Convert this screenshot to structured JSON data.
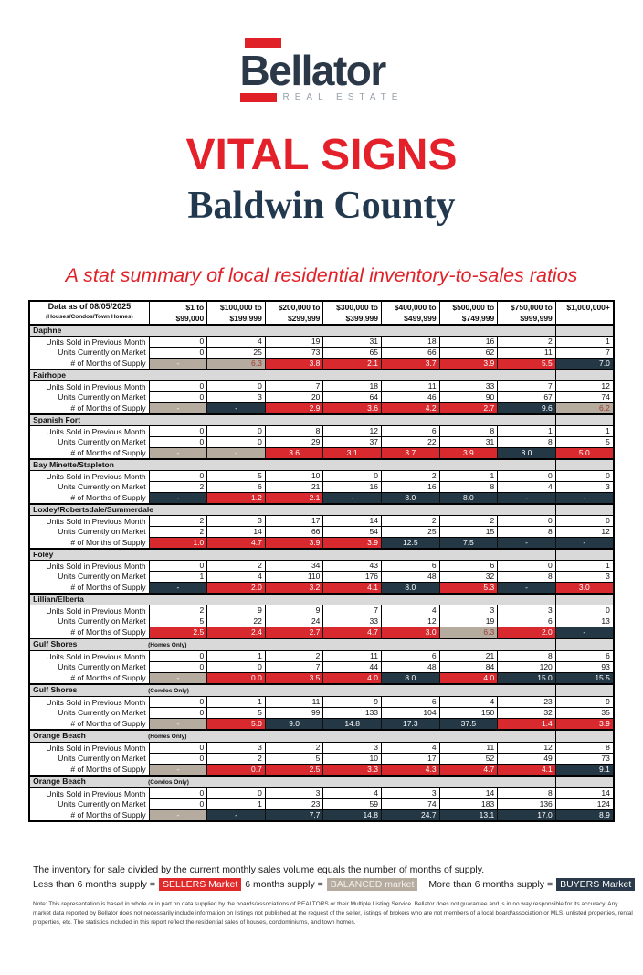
{
  "logo": {
    "brand": "Bellator",
    "tagline": "REAL ESTATE"
  },
  "title": "VITAL SIGNS",
  "county": "Baldwin County",
  "stat_summary": "A stat summary of local residential inventory-to-sales ratios",
  "colors": {
    "sellers_red": "#D8292E",
    "buyers_navy": "#243745",
    "balanced_tan": "#B5AB9E",
    "section_gray": "#D9D9D9",
    "brand_navy": "#2B3848",
    "title_red": "#E4212B"
  },
  "table": {
    "header": {
      "title": "Data as of 08/05/2025",
      "subtitle": "(Houses/Condos/Town Homes)",
      "columns": [
        [
          "$1 to",
          "$99,000"
        ],
        [
          "$100,000 to",
          "$199,999"
        ],
        [
          "$200,000 to",
          "$299,999"
        ],
        [
          "$300,000 to",
          "$399,999"
        ],
        [
          "$400,000 to",
          "$499,999"
        ],
        [
          "$500,000 to",
          "$749,999"
        ],
        [
          "$750,000 to",
          "$999,999"
        ],
        [
          "$1,000,000+",
          ""
        ]
      ]
    },
    "row_labels": [
      "Units Sold in Previous Month",
      "Units Currently on Market",
      "# of Months of Supply"
    ],
    "sections": [
      {
        "name": "Daphne",
        "subtitle": "",
        "sold": [
          0,
          4,
          19,
          31,
          18,
          16,
          2,
          1
        ],
        "market": [
          0,
          25,
          73,
          65,
          66,
          62,
          11,
          7
        ],
        "supply": [
          {
            "v": "-",
            "c": "t"
          },
          {
            "v": "6.3",
            "c": "t"
          },
          {
            "v": "3.8",
            "c": "s"
          },
          {
            "v": "2.1",
            "c": "s"
          },
          {
            "v": "3.7",
            "c": "s"
          },
          {
            "v": "3.9",
            "c": "s"
          },
          {
            "v": "5.5",
            "c": "s"
          },
          {
            "v": "7.0",
            "c": "b"
          }
        ]
      },
      {
        "name": "Fairhope",
        "subtitle": "",
        "sold": [
          0,
          0,
          7,
          18,
          11,
          33,
          7,
          12
        ],
        "market": [
          0,
          3,
          20,
          64,
          46,
          90,
          67,
          74
        ],
        "supply": [
          {
            "v": "-",
            "c": "t"
          },
          {
            "v": "-",
            "c": "b"
          },
          {
            "v": "2.9",
            "c": "s"
          },
          {
            "v": "3.6",
            "c": "s"
          },
          {
            "v": "4.2",
            "c": "s"
          },
          {
            "v": "2.7",
            "c": "s"
          },
          {
            "v": "9.6",
            "c": "b"
          },
          {
            "v": "6.2",
            "c": "t"
          }
        ]
      },
      {
        "name": "Spanish Fort",
        "subtitle": "",
        "sold": [
          0,
          0,
          8,
          12,
          6,
          8,
          1,
          1
        ],
        "market": [
          0,
          0,
          29,
          37,
          22,
          31,
          8,
          5
        ],
        "supply": [
          {
            "v": "-",
            "c": "t"
          },
          {
            "v": "-",
            "c": "t"
          },
          {
            "v": "3.6",
            "c": "s",
            "a": "c"
          },
          {
            "v": "3.1",
            "c": "s",
            "a": "c"
          },
          {
            "v": "3.7",
            "c": "s",
            "a": "c"
          },
          {
            "v": "3.9",
            "c": "s",
            "a": "c"
          },
          {
            "v": "8.0",
            "c": "b",
            "a": "c"
          },
          {
            "v": "5.0",
            "c": "s",
            "a": "c"
          }
        ]
      },
      {
        "name": "Bay Minette/Stapleton",
        "subtitle": "",
        "sold": [
          0,
          5,
          10,
          0,
          2,
          1,
          0,
          0
        ],
        "market": [
          2,
          6,
          21,
          16,
          16,
          8,
          4,
          3
        ],
        "supply": [
          {
            "v": "-",
            "c": "b"
          },
          {
            "v": "1.2",
            "c": "s"
          },
          {
            "v": "2.1",
            "c": "s"
          },
          {
            "v": "-",
            "c": "b"
          },
          {
            "v": "8.0",
            "c": "b",
            "a": "c"
          },
          {
            "v": "8.0",
            "c": "b",
            "a": "c"
          },
          {
            "v": "-",
            "c": "b"
          },
          {
            "v": "-",
            "c": "b"
          }
        ]
      },
      {
        "name": "Loxley/Robertsdale/Summerdale",
        "subtitle": "",
        "sold": [
          2,
          3,
          17,
          14,
          2,
          2,
          0,
          0
        ],
        "market": [
          2,
          14,
          66,
          54,
          25,
          15,
          8,
          12
        ],
        "supply": [
          {
            "v": "1.0",
            "c": "s"
          },
          {
            "v": "4.7",
            "c": "s"
          },
          {
            "v": "3.9",
            "c": "s"
          },
          {
            "v": "3.9",
            "c": "s"
          },
          {
            "v": "12.5",
            "c": "b",
            "a": "c"
          },
          {
            "v": "7.5",
            "c": "b",
            "a": "c"
          },
          {
            "v": "-",
            "c": "b"
          },
          {
            "v": "-",
            "c": "b"
          }
        ]
      },
      {
        "name": "Foley",
        "subtitle": "",
        "sold": [
          0,
          2,
          34,
          43,
          6,
          6,
          0,
          1
        ],
        "market": [
          1,
          4,
          110,
          176,
          48,
          32,
          8,
          3
        ],
        "supply": [
          {
            "v": "-",
            "c": "b"
          },
          {
            "v": "2.0",
            "c": "s"
          },
          {
            "v": "3.2",
            "c": "s"
          },
          {
            "v": "4.1",
            "c": "s"
          },
          {
            "v": "8.0",
            "c": "b",
            "a": "c"
          },
          {
            "v": "5.3",
            "c": "s"
          },
          {
            "v": "-",
            "c": "b"
          },
          {
            "v": "3.0",
            "c": "s",
            "a": "c"
          }
        ]
      },
      {
        "name": "Lillian/Elberta",
        "subtitle": "",
        "sold": [
          2,
          9,
          9,
          7,
          4,
          3,
          3,
          0
        ],
        "market": [
          5,
          22,
          24,
          33,
          12,
          19,
          6,
          13
        ],
        "supply": [
          {
            "v": "2.5",
            "c": "s"
          },
          {
            "v": "2.4",
            "c": "s"
          },
          {
            "v": "2.7",
            "c": "s"
          },
          {
            "v": "4.7",
            "c": "s"
          },
          {
            "v": "3.0",
            "c": "s"
          },
          {
            "v": "6.3",
            "c": "t"
          },
          {
            "v": "2.0",
            "c": "s"
          },
          {
            "v": "-",
            "c": "b"
          }
        ]
      },
      {
        "name": "Gulf Shores",
        "subtitle": "(Homes Only)",
        "sold": [
          0,
          1,
          2,
          11,
          6,
          21,
          8,
          6
        ],
        "market": [
          0,
          0,
          7,
          44,
          48,
          84,
          120,
          93
        ],
        "supply": [
          {
            "v": "-",
            "c": "t"
          },
          {
            "v": "0.0",
            "c": "s"
          },
          {
            "v": "3.5",
            "c": "s"
          },
          {
            "v": "4.0",
            "c": "s"
          },
          {
            "v": "8.0",
            "c": "b",
            "a": "c"
          },
          {
            "v": "4.0",
            "c": "s"
          },
          {
            "v": "15.0",
            "c": "b"
          },
          {
            "v": "15.5",
            "c": "b"
          }
        ]
      },
      {
        "name": "Gulf Shores",
        "subtitle": "(Condos Only)",
        "sold": [
          0,
          1,
          11,
          9,
          6,
          4,
          23,
          9
        ],
        "market": [
          0,
          5,
          99,
          133,
          104,
          150,
          32,
          35
        ],
        "supply": [
          {
            "v": "-",
            "c": "t"
          },
          {
            "v": "5.0",
            "c": "s"
          },
          {
            "v": "9.0",
            "c": "b",
            "a": "c"
          },
          {
            "v": "14.8",
            "c": "b",
            "a": "c"
          },
          {
            "v": "17.3",
            "c": "b",
            "a": "c"
          },
          {
            "v": "37.5",
            "c": "b",
            "a": "c"
          },
          {
            "v": "1.4",
            "c": "s"
          },
          {
            "v": "3.9",
            "c": "s"
          }
        ]
      },
      {
        "name": "Orange Beach",
        "subtitle": "(Homes Only)",
        "sold": [
          0,
          3,
          2,
          3,
          4,
          11,
          12,
          8
        ],
        "market": [
          0,
          2,
          5,
          10,
          17,
          52,
          49,
          73
        ],
        "supply": [
          {
            "v": "-",
            "c": "t"
          },
          {
            "v": "0.7",
            "c": "s"
          },
          {
            "v": "2.5",
            "c": "s"
          },
          {
            "v": "3.3",
            "c": "s"
          },
          {
            "v": "4.3",
            "c": "s"
          },
          {
            "v": "4.7",
            "c": "s"
          },
          {
            "v": "4.1",
            "c": "s"
          },
          {
            "v": "9.1",
            "c": "b"
          }
        ]
      },
      {
        "name": "Orange Beach",
        "subtitle": "(Condos Only)",
        "sold": [
          0,
          0,
          3,
          4,
          3,
          14,
          8,
          14
        ],
        "market": [
          0,
          1,
          23,
          59,
          74,
          183,
          136,
          124
        ],
        "supply": [
          {
            "v": "-",
            "c": "t"
          },
          {
            "v": "-",
            "c": "b"
          },
          {
            "v": "7.7",
            "c": "b"
          },
          {
            "v": "14.8",
            "c": "b"
          },
          {
            "v": "24.7",
            "c": "b"
          },
          {
            "v": "13.1",
            "c": "b"
          },
          {
            "v": "17.0",
            "c": "b"
          },
          {
            "v": "8.9",
            "c": "b"
          }
        ]
      }
    ]
  },
  "footer": {
    "definition": "The inventory for sale divided by the current monthly sales volume equals the number of months of supply.",
    "legend": {
      "sellers_prefix": "Less than 6 months supply =",
      "sellers_label": "SELLERS Market",
      "balanced_prefix": "6 months supply =",
      "balanced_label": "BALANCED market",
      "buyers_prefix": "More than 6 months supply =",
      "buyers_label": "BUYERS Market"
    },
    "note": "Note: This representation is based in whole or in part on data supplied by the boards/associations of REALTORS or their Multiple Listing Service. Bellator does not guarantee and is in no way responsible for its accuracy. Any market data reported by Bellator does not necessarily include information on listings not published at the request of the seller, listings of brokers who are not members of a local board/association or MLS, unlisted properties, rental properties, etc. The statistics included in this report reflect the residential sales of houses, condominiums, and town homes."
  }
}
